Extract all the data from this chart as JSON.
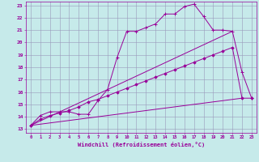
{
  "xlabel": "Windchill (Refroidissement éolien,°C)",
  "xlim": [
    -0.5,
    23.5
  ],
  "ylim": [
    12.7,
    23.3
  ],
  "xticks": [
    0,
    1,
    2,
    3,
    4,
    5,
    6,
    7,
    8,
    9,
    10,
    11,
    12,
    13,
    14,
    15,
    16,
    17,
    18,
    19,
    20,
    21,
    22,
    23
  ],
  "yticks": [
    13,
    14,
    15,
    16,
    17,
    18,
    19,
    20,
    21,
    22,
    23
  ],
  "background_color": "#c6eaea",
  "line_color": "#990099",
  "grid_color": "#9999bb",
  "line1_x": [
    0,
    1,
    2,
    3,
    4,
    5,
    6,
    7,
    8,
    9,
    10,
    11,
    12,
    13,
    14,
    15,
    16,
    17,
    18,
    19,
    20,
    21,
    22,
    23
  ],
  "line1_y": [
    13.3,
    14.1,
    14.4,
    14.4,
    14.4,
    14.2,
    14.2,
    15.3,
    16.2,
    18.8,
    20.9,
    20.9,
    21.2,
    21.5,
    22.3,
    22.3,
    22.9,
    23.1,
    22.1,
    21.0,
    21.0,
    20.9,
    17.6,
    15.5
  ],
  "line2_x": [
    0,
    1,
    2,
    3,
    4,
    5,
    6,
    7,
    8,
    9,
    10,
    11,
    12,
    13,
    14,
    15,
    16,
    17,
    18,
    19,
    20,
    21,
    22,
    23
  ],
  "line2_y": [
    13.3,
    13.8,
    14.1,
    14.3,
    14.5,
    14.8,
    15.2,
    15.4,
    15.7,
    16.0,
    16.3,
    16.6,
    16.9,
    17.2,
    17.5,
    17.8,
    18.1,
    18.4,
    18.7,
    19.0,
    19.3,
    19.6,
    15.5,
    15.5
  ],
  "line3_x": [
    0,
    22
  ],
  "line3_y": [
    13.3,
    15.5
  ],
  "line4_x": [
    0,
    21
  ],
  "line4_y": [
    13.3,
    20.9
  ]
}
